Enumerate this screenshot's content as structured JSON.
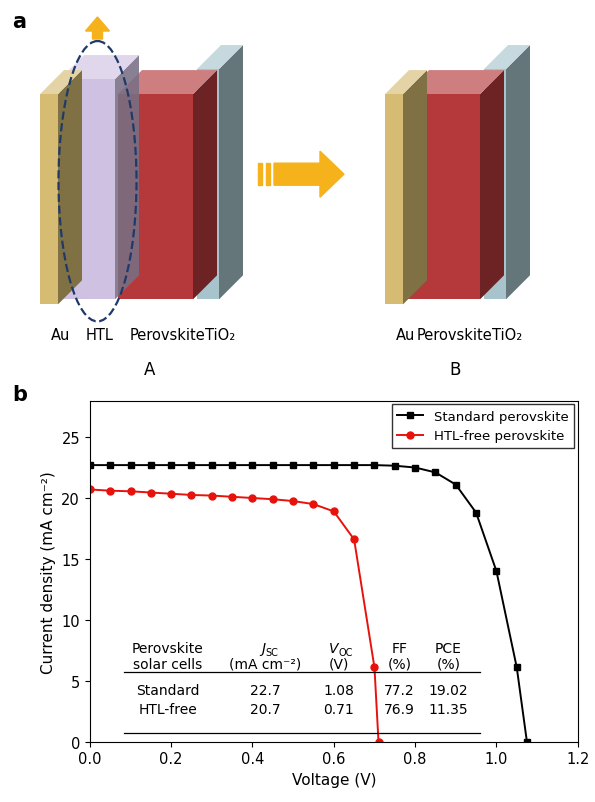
{
  "diagram": {
    "label": "a",
    "left": {
      "caption": "A",
      "layers": [
        {
          "name": "Au",
          "color": "#d6bc73"
        },
        {
          "name": "HTL",
          "color": "#c9b9de"
        },
        {
          "name": "Perovskite",
          "color": "#b5393b"
        },
        {
          "name": "TiO₂",
          "color": "#a7c4cc"
        }
      ]
    },
    "right": {
      "caption": "B",
      "layers": [
        {
          "name": "Au",
          "color": "#d6bc73"
        },
        {
          "name": "Perovskite",
          "color": "#b5393b"
        },
        {
          "name": "TiO₂",
          "color": "#a7c4cc"
        }
      ]
    }
  },
  "chart_data": {
    "label": "b",
    "type": "line",
    "x_label": "Voltage (V)",
    "y_label": "Current density (mA cm⁻²)",
    "xlim": [
      0,
      1.2
    ],
    "xticks": [
      {
        "value": 0,
        "label": "0.0"
      },
      0.2,
      0.4,
      0.6,
      0.8,
      {
        "value": 1,
        "label": "1.0"
      },
      1.2
    ],
    "ylim": [
      0,
      28
    ],
    "yticks": [
      0,
      5,
      10,
      15,
      20,
      25
    ],
    "legend": "upper right",
    "series": [
      {
        "name": "Standard perovskite",
        "color": "#000000",
        "marker": "square",
        "line_style": "solid",
        "x": [
          0.0,
          0.05,
          0.1,
          0.15,
          0.2,
          0.25,
          0.3,
          0.35,
          0.4,
          0.45,
          0.5,
          0.55,
          0.6,
          0.65,
          0.7,
          0.75,
          0.8,
          0.85,
          0.9,
          0.95,
          1.0,
          1.05,
          1.075
        ],
        "values": [
          22.7,
          22.7,
          22.7,
          22.7,
          22.7,
          22.7,
          22.7,
          22.7,
          22.7,
          22.7,
          22.7,
          22.7,
          22.7,
          22.7,
          22.7,
          22.65,
          22.5,
          22.1,
          21.1,
          18.8,
          14.0,
          6.1,
          0
        ]
      },
      {
        "name": "HTL-free perovskite",
        "color": "#e8120c",
        "marker": "circle",
        "line_style": "solid",
        "x": [
          0.0,
          0.05,
          0.1,
          0.15,
          0.2,
          0.25,
          0.3,
          0.35,
          0.4,
          0.45,
          0.5,
          0.55,
          0.6,
          0.65,
          0.7,
          0.71
        ],
        "values": [
          20.7,
          20.6,
          20.55,
          20.45,
          20.35,
          20.25,
          20.2,
          20.1,
          20.0,
          19.9,
          19.75,
          19.5,
          18.9,
          16.6,
          6.1,
          0
        ]
      }
    ],
    "table": {
      "header": [
        [
          {
            "text": "Perovskite"
          },
          {
            "symbol": "J",
            "subscript": "SC"
          },
          {
            "symbol": "V",
            "subscript": "OC"
          },
          {
            "text": "FF"
          },
          {
            "text": "PCE"
          }
        ],
        [
          "solar cells",
          "(mA cm⁻²)",
          "(V)",
          "(%)",
          "(%)"
        ]
      ],
      "rows": [
        [
          "Standard",
          22.7,
          1.08,
          77.2,
          19.02
        ],
        [
          "HTL-free",
          20.7,
          0.71,
          76.9,
          11.35
        ]
      ]
    }
  }
}
